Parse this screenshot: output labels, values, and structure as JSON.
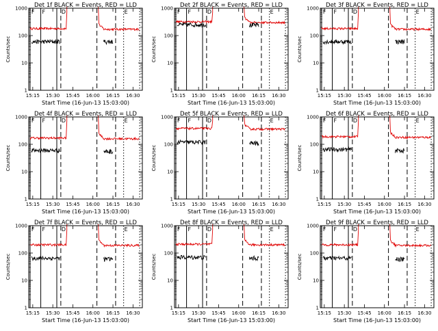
{
  "common": {
    "ylabel": "Counts/sec",
    "xlabel": "Start Time (16-Jun-13 15:03:00)",
    "xticks": [
      "15:15",
      "15:30",
      "15:45",
      "16:00",
      "16:15",
      "16:30"
    ],
    "yticks": [
      "1",
      "10",
      "100",
      "1000"
    ],
    "markers": [
      "F",
      "F",
      "D",
      "E"
    ],
    "colors": {
      "events": "#000000",
      "lld": "#e00000",
      "axes": "#000000",
      "background": "#ffffff"
    }
  },
  "chart_data": [
    {
      "type": "line",
      "title": "Det 1f BLACK = Events, RED = LLD",
      "x_range_min": [
        12,
        37
      ],
      "ylim": [
        1,
        1000
      ],
      "y_scale": "log",
      "series": [
        {
          "name": "Events",
          "level": 60
        },
        {
          "name": "LLD",
          "level": 180
        }
      ],
      "events_post": 60,
      "lld_post": 170
    },
    {
      "type": "line",
      "title": "Det 2f BLACK = Events, RED = LLD",
      "x_range_min": [
        12,
        37
      ],
      "ylim": [
        1,
        1000
      ],
      "y_scale": "log",
      "series": [
        {
          "name": "Events",
          "level": 250
        },
        {
          "name": "LLD",
          "level": 320
        }
      ],
      "events_post": 240,
      "lld_post": 300
    },
    {
      "type": "line",
      "title": "Det 3f BLACK = Events, RED = LLD",
      "x_range_min": [
        12,
        37
      ],
      "ylim": [
        1,
        1000
      ],
      "y_scale": "log",
      "series": [
        {
          "name": "Events",
          "level": 60
        },
        {
          "name": "LLD",
          "level": 180
        }
      ],
      "events_post": 60,
      "lld_post": 170
    },
    {
      "type": "line",
      "title": "Det 4f BLACK = Events, RED = LLD",
      "x_range_min": [
        12,
        37
      ],
      "ylim": [
        1,
        1000
      ],
      "y_scale": "log",
      "series": [
        {
          "name": "Events",
          "level": 60
        },
        {
          "name": "LLD",
          "level": 170
        }
      ],
      "events_post": 55,
      "lld_post": 160
    },
    {
      "type": "line",
      "title": "Det 5f BLACK = Events, RED = LLD",
      "x_range_min": [
        12,
        37
      ],
      "ylim": [
        1,
        1000
      ],
      "y_scale": "log",
      "series": [
        {
          "name": "Events",
          "level": 120
        },
        {
          "name": "LLD",
          "level": 380
        }
      ],
      "events_post": 110,
      "lld_post": 360
    },
    {
      "type": "line",
      "title": "Det 6f BLACK = Events, RED = LLD",
      "x_range_min": [
        12,
        37
      ],
      "ylim": [
        1,
        1000
      ],
      "y_scale": "log",
      "series": [
        {
          "name": "Events",
          "level": 65
        },
        {
          "name": "LLD",
          "level": 190
        }
      ],
      "events_post": 60,
      "lld_post": 180
    },
    {
      "type": "line",
      "title": "Det 7f BLACK = Events, RED = LLD",
      "x_range_min": [
        12,
        37
      ],
      "ylim": [
        1,
        1000
      ],
      "y_scale": "log",
      "series": [
        {
          "name": "Events",
          "level": 65
        },
        {
          "name": "LLD",
          "level": 200
        }
      ],
      "events_post": 60,
      "lld_post": 190
    },
    {
      "type": "line",
      "title": "Det 8f BLACK = Events, RED = LLD",
      "x_range_min": [
        12,
        37
      ],
      "ylim": [
        1,
        1000
      ],
      "y_scale": "log",
      "series": [
        {
          "name": "Events",
          "level": 70
        },
        {
          "name": "LLD",
          "level": 210
        }
      ],
      "events_post": 65,
      "lld_post": 200
    },
    {
      "type": "line",
      "title": "Det 9f BLACK = Events, RED = LLD",
      "x_range_min": [
        12,
        37
      ],
      "ylim": [
        1,
        1000
      ],
      "y_scale": "log",
      "series": [
        {
          "name": "Events",
          "level": 65
        },
        {
          "name": "LLD",
          "level": 200
        }
      ],
      "events_post": 60,
      "lld_post": 190
    }
  ]
}
